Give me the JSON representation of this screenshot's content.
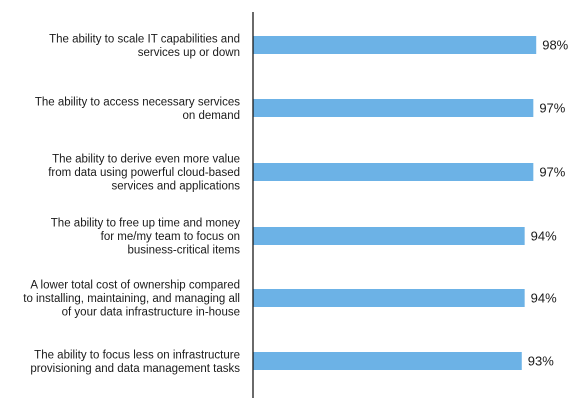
{
  "chart_data": {
    "type": "bar",
    "orientation": "horizontal",
    "title": "",
    "xlabel": "",
    "ylabel": "",
    "categories": [
      [
        "The ability to scale IT capabilities and",
        "services up or down"
      ],
      [
        "The ability to access necessary services",
        "on demand"
      ],
      [
        "The ability to derive even more value",
        "from data using powerful cloud-based",
        "services and applications"
      ],
      [
        "The ability to free up time and money",
        "for me/my team to focus on",
        "business-critical items"
      ],
      [
        "A lower total cost of ownership compared",
        "to  installing, maintaining, and managing all",
        "of your data infrastructure in-house"
      ],
      [
        "The ability to focus less on infrastructure",
        "provisioning and data management tasks"
      ]
    ],
    "values": [
      98,
      97,
      97,
      94,
      94,
      93
    ],
    "value_labels": [
      "98%",
      "97%",
      "97%",
      "94%",
      "94%",
      "93%"
    ],
    "bar_color": "#6cb2e6",
    "axis_color": "#1a1a1a",
    "grid": false,
    "legend": "none"
  }
}
